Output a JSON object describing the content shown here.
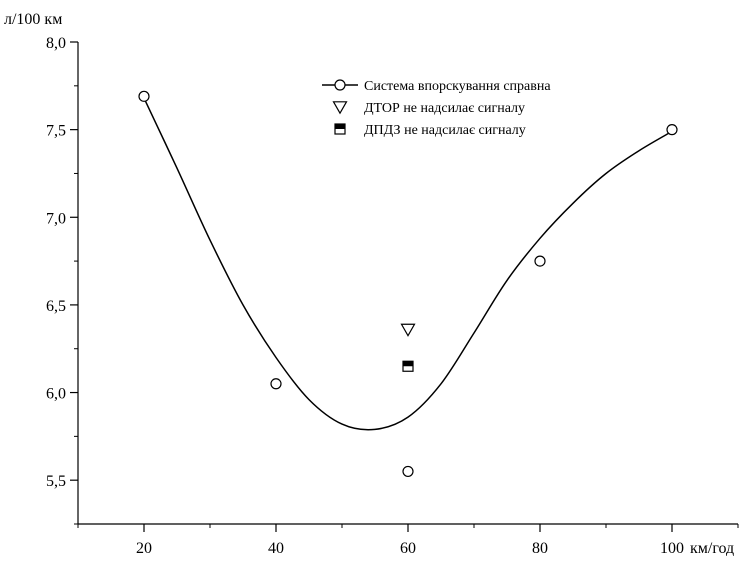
{
  "chart_data": {
    "type": "scatter",
    "ylabel": "л/100 км",
    "xlabel": "км/год",
    "xlim": [
      10,
      110
    ],
    "ylim": [
      5.25,
      8.0
    ],
    "x_ticks": [
      20,
      40,
      60,
      80,
      100
    ],
    "x_tick_labels": [
      "20",
      "40",
      "60",
      "80",
      "100"
    ],
    "y_ticks": [
      5.5,
      6.0,
      6.5,
      7.0,
      7.5,
      8.0
    ],
    "y_tick_labels": [
      "5,5",
      "6,0",
      "6,5",
      "7,0",
      "7,5",
      "8,0"
    ],
    "grid": false,
    "legend_position": "top-right",
    "series": [
      {
        "name": "Система впорскування справна",
        "marker": "circle",
        "line": true,
        "x": [
          20,
          40,
          60,
          80,
          100
        ],
        "y": [
          7.69,
          6.05,
          5.55,
          6.75,
          7.5
        ]
      },
      {
        "name": "ДТОР не надсилає сигналу",
        "marker": "triangle-down",
        "line": false,
        "x": [
          60
        ],
        "y": [
          6.36
        ]
      },
      {
        "name": "ДПДЗ не надсилає сигналу",
        "marker": "half-filled-square",
        "line": false,
        "x": [
          60
        ],
        "y": [
          6.15
        ]
      }
    ],
    "fit_curve": {
      "x": [
        20,
        25,
        30,
        35,
        40,
        45,
        50,
        55,
        60,
        65,
        70,
        75,
        80,
        85,
        90,
        95,
        100
      ],
      "y": [
        7.68,
        7.28,
        6.87,
        6.5,
        6.2,
        5.96,
        5.82,
        5.79,
        5.86,
        6.05,
        6.34,
        6.64,
        6.88,
        7.08,
        7.25,
        7.38,
        7.49
      ]
    }
  }
}
